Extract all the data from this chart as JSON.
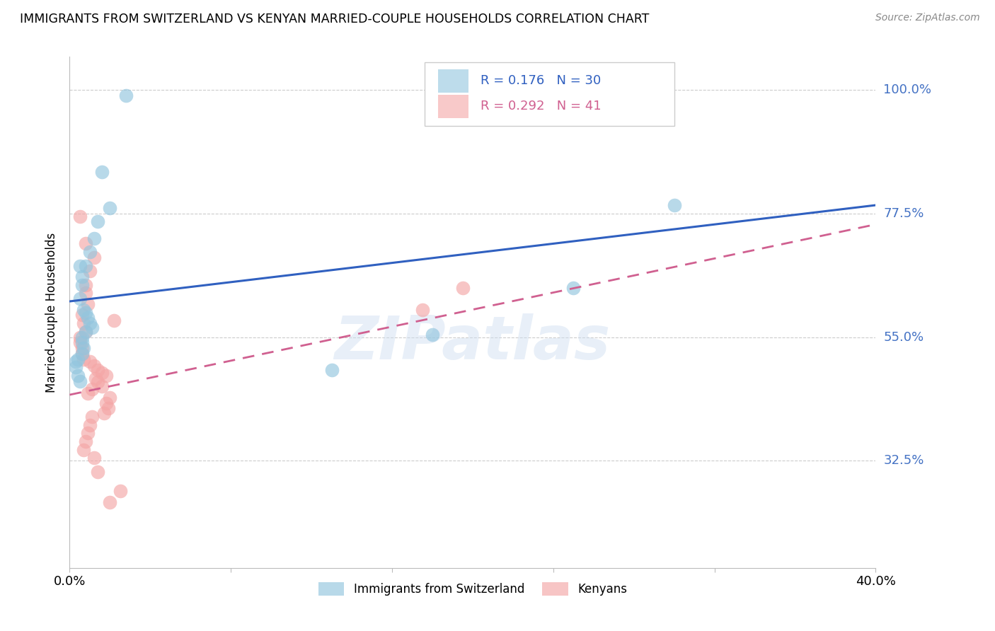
{
  "title": "IMMIGRANTS FROM SWITZERLAND VS KENYAN MARRIED-COUPLE HOUSEHOLDS CORRELATION CHART",
  "source": "Source: ZipAtlas.com",
  "ylabel": "Married-couple Households",
  "ytick_labels": [
    "100.0%",
    "77.5%",
    "55.0%",
    "32.5%"
  ],
  "ytick_values": [
    1.0,
    0.775,
    0.55,
    0.325
  ],
  "xlim": [
    0.0,
    0.4
  ],
  "ylim": [
    0.13,
    1.06
  ],
  "legend1_R": "0.176",
  "legend1_N": "30",
  "legend2_R": "0.292",
  "legend2_N": "41",
  "blue_color": "#92c5de",
  "pink_color": "#f4a6a6",
  "line_blue": "#3060c0",
  "line_pink": "#d06090",
  "watermark": "ZIPatlas",
  "blue_points_x": [
    0.028,
    0.016,
    0.02,
    0.014,
    0.012,
    0.01,
    0.008,
    0.005,
    0.006,
    0.006,
    0.005,
    0.007,
    0.008,
    0.009,
    0.01,
    0.011,
    0.008,
    0.006,
    0.006,
    0.007,
    0.006,
    0.004,
    0.003,
    0.003,
    0.004,
    0.18,
    0.3,
    0.25,
    0.13,
    0.005
  ],
  "blue_points_y": [
    0.99,
    0.85,
    0.785,
    0.76,
    0.73,
    0.705,
    0.68,
    0.68,
    0.66,
    0.645,
    0.62,
    0.6,
    0.595,
    0.585,
    0.575,
    0.568,
    0.56,
    0.55,
    0.54,
    0.53,
    0.52,
    0.51,
    0.505,
    0.495,
    0.48,
    0.555,
    0.79,
    0.64,
    0.49,
    0.47
  ],
  "pink_points_x": [
    0.005,
    0.008,
    0.012,
    0.01,
    0.008,
    0.008,
    0.009,
    0.006,
    0.007,
    0.008,
    0.005,
    0.005,
    0.006,
    0.006,
    0.007,
    0.01,
    0.012,
    0.014,
    0.016,
    0.018,
    0.013,
    0.014,
    0.016,
    0.011,
    0.009,
    0.02,
    0.018,
    0.019,
    0.017,
    0.011,
    0.01,
    0.009,
    0.008,
    0.007,
    0.012,
    0.014,
    0.175,
    0.195,
    0.022,
    0.025,
    0.02
  ],
  "pink_points_y": [
    0.77,
    0.72,
    0.695,
    0.67,
    0.645,
    0.63,
    0.61,
    0.59,
    0.575,
    0.56,
    0.55,
    0.54,
    0.53,
    0.52,
    0.51,
    0.505,
    0.498,
    0.49,
    0.485,
    0.48,
    0.475,
    0.468,
    0.46,
    0.455,
    0.448,
    0.44,
    0.43,
    0.42,
    0.412,
    0.405,
    0.39,
    0.375,
    0.36,
    0.345,
    0.33,
    0.305,
    0.6,
    0.64,
    0.58,
    0.27,
    0.25
  ],
  "blue_line_x": [
    0.0,
    0.4
  ],
  "blue_line_y": [
    0.615,
    0.79
  ],
  "pink_line_x": [
    0.0,
    0.4
  ],
  "pink_line_y": [
    0.445,
    0.755
  ]
}
